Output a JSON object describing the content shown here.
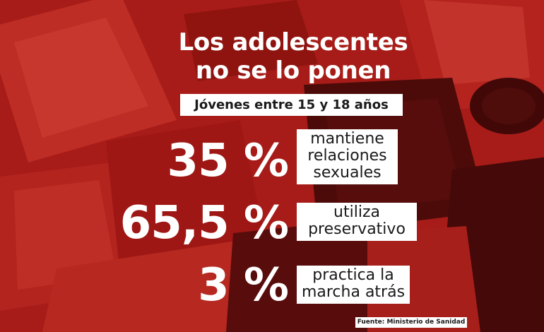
{
  "title": {
    "line1": "Los adolescentes",
    "line2": "no se lo ponen"
  },
  "subtitle": "Jóvenes entre 15 y 18 años",
  "stats": [
    {
      "value": "35 %",
      "label_lines": [
        "mantiene",
        "relaciones",
        "sexuales"
      ]
    },
    {
      "value": "65,5 %",
      "label_lines": [
        "utiliza",
        "preservativo"
      ]
    },
    {
      "value": "3 %",
      "label_lines": [
        "practica la",
        "marcha atrás"
      ]
    }
  ],
  "source": "Fuente: Ministerio de Sanidad",
  "colors": {
    "background_tint": "#b4201d",
    "text": "#ffffff",
    "label_bg": "#ffffff",
    "label_text": "#1a1a1a"
  }
}
